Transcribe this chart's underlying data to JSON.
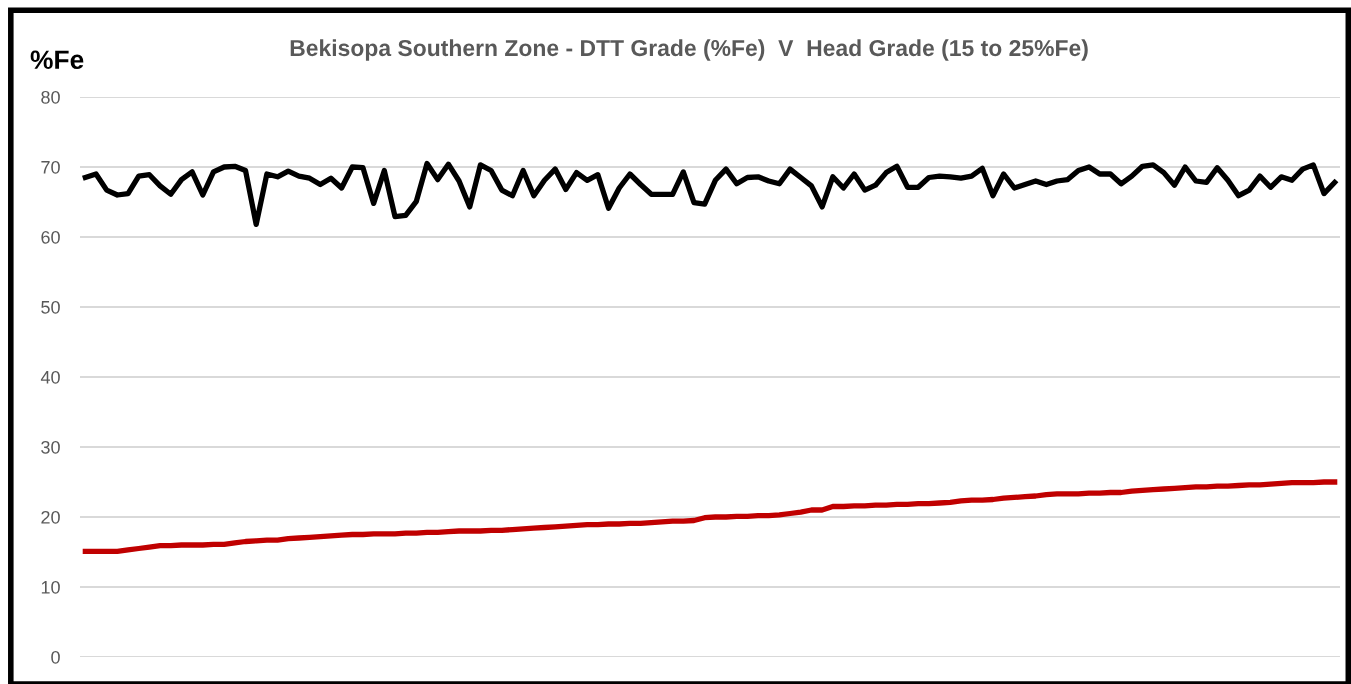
{
  "chart_data": {
    "type": "line",
    "title": "Bekisopa Southern Zone - DTT Grade (%Fe)  V  Head Grade (15 to 25%Fe)",
    "ylabel": "%Fe",
    "categories": [
      null,
      null,
      null,
      null,
      null,
      null,
      null,
      null,
      null,
      null,
      null,
      null,
      null,
      null,
      null,
      null,
      null,
      null,
      null,
      null,
      null,
      null,
      null,
      null,
      null,
      null,
      null,
      null,
      null,
      null,
      null,
      null,
      null,
      null,
      null,
      null,
      null,
      null,
      null,
      null,
      null,
      null,
      null,
      null,
      null,
      null,
      null,
      null,
      null,
      null,
      null,
      null,
      null,
      null,
      null,
      null,
      null,
      null,
      null,
      null,
      null,
      null,
      null,
      null,
      null,
      null,
      null,
      null,
      null,
      null,
      null,
      null,
      null,
      null,
      null,
      null,
      null,
      null,
      null,
      null,
      null,
      null,
      null,
      null,
      null,
      null,
      null,
      null,
      null,
      null,
      null,
      null,
      null,
      null,
      null,
      null,
      null,
      null,
      null,
      null,
      null,
      null,
      null,
      null,
      null,
      null,
      null,
      null,
      null,
      null,
      null,
      null,
      null,
      null,
      null,
      null,
      null,
      null
    ],
    "series": [
      {
        "color": "#000000",
        "values": [
          68.5,
          69.0,
          66.7,
          66.0,
          66.2,
          68.7,
          68.9,
          67.3,
          66.1,
          68.2,
          69.3,
          66.0,
          69.3,
          70.0,
          70.1,
          69.5,
          61.8,
          69.0,
          68.6,
          69.4,
          68.7,
          68.4,
          67.5,
          68.4,
          67.0,
          70.0,
          69.9,
          64.8,
          69.5,
          62.9,
          63.1,
          65.1,
          70.5,
          68.2,
          70.4,
          68.0,
          64.3,
          70.3,
          69.5,
          66.7,
          65.9,
          69.5,
          65.9,
          68.1,
          69.7,
          66.8,
          69.2,
          68.1,
          68.9,
          64.1,
          67.0,
          69.0,
          67.5,
          66.1,
          66.1,
          66.1,
          69.3,
          64.9,
          64.7,
          68.1,
          69.7,
          67.6,
          68.5,
          68.6,
          68.0,
          67.6,
          69.7,
          68.5,
          67.3,
          64.3,
          68.6,
          67.0,
          69.0,
          66.7,
          67.4,
          69.2,
          70.1,
          67.1,
          67.1,
          68.5,
          68.7,
          68.6,
          68.4,
          68.7,
          69.8,
          65.9,
          69.0,
          67.0,
          67.5,
          68.0,
          67.5,
          68.0,
          68.2,
          69.5,
          70.0,
          69.0,
          69.0,
          67.6,
          68.7,
          70.1,
          70.3,
          69.2,
          67.4,
          70.0,
          68.0,
          67.8,
          69.9,
          68.1,
          65.9,
          66.7,
          68.7,
          67.1,
          68.6,
          68.1,
          69.7,
          70.3,
          66.2,
          67.8
        ]
      },
      {
        "color": "#c00000",
        "values": [
          15.1,
          15.1,
          15.1,
          15.1,
          15.3,
          15.5,
          15.7,
          15.9,
          15.9,
          16.0,
          16.0,
          16.0,
          16.1,
          16.1,
          16.3,
          16.5,
          16.6,
          16.7,
          16.7,
          16.9,
          17.0,
          17.1,
          17.2,
          17.3,
          17.4,
          17.5,
          17.5,
          17.6,
          17.6,
          17.6,
          17.7,
          17.7,
          17.8,
          17.8,
          17.9,
          18.0,
          18.0,
          18.0,
          18.1,
          18.1,
          18.2,
          18.3,
          18.4,
          18.5,
          18.6,
          18.7,
          18.8,
          18.9,
          18.9,
          19.0,
          19.0,
          19.1,
          19.1,
          19.2,
          19.3,
          19.4,
          19.4,
          19.5,
          19.9,
          20.0,
          20.0,
          20.1,
          20.1,
          20.2,
          20.2,
          20.3,
          20.5,
          20.7,
          21.0,
          21.0,
          21.5,
          21.5,
          21.6,
          21.6,
          21.7,
          21.7,
          21.8,
          21.8,
          21.9,
          21.9,
          22.0,
          22.1,
          22.3,
          22.4,
          22.4,
          22.5,
          22.7,
          22.8,
          22.9,
          23.0,
          23.2,
          23.3,
          23.3,
          23.3,
          23.4,
          23.4,
          23.5,
          23.5,
          23.7,
          23.8,
          23.9,
          24.0,
          24.1,
          24.2,
          24.3,
          24.3,
          24.4,
          24.4,
          24.5,
          24.6,
          24.6,
          24.7,
          24.8,
          24.9,
          24.9,
          24.9,
          25.0,
          25.0
        ]
      }
    ],
    "ylim": [
      0,
      80
    ],
    "yticks": [
      0,
      10,
      20,
      30,
      40,
      50,
      60,
      70,
      80
    ],
    "grid": "y",
    "tick_labels": "y",
    "marker": "none",
    "line_style": "solid"
  }
}
